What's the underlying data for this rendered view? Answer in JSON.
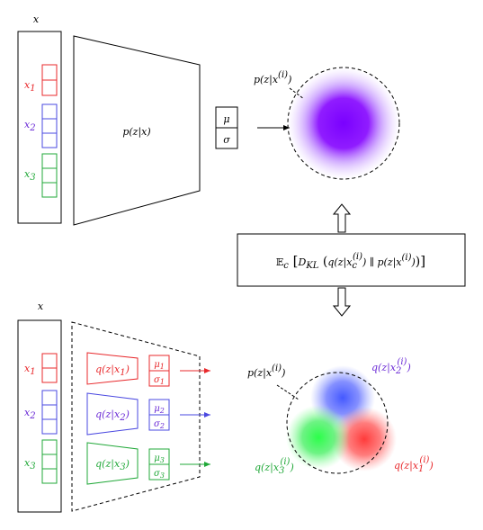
{
  "top": {
    "x_label": "x",
    "segments": [
      {
        "label": "x",
        "sub": "1",
        "color": "#e8282b"
      },
      {
        "label": "x",
        "sub": "2",
        "color": "#6b2bd6"
      },
      {
        "label": "x",
        "sub": "3",
        "color": "#20a838"
      }
    ],
    "encoder_label_1": "p(",
    "encoder_label_2": "z",
    "encoder_label_3": "|",
    "encoder_label_4": "x",
    "encoder_label_5": ")",
    "mu": "μ",
    "sigma": "σ",
    "dist_label": "p(z|x",
    "dist_sup": "(i)",
    "dist_close": ")"
  },
  "middle": {
    "E": "𝔼",
    "E_sub": "c",
    "D": "D",
    "D_sub": "KL",
    "q_part": "q(z|x",
    "q_sub": "c",
    "q_sup": "(i)",
    "sep": "∥",
    "p_part": "p(z|x",
    "p_sup": "(i)"
  },
  "bottom": {
    "x_label": "x",
    "segments": [
      {
        "label": "x",
        "sub": "1",
        "color": "#e8282b",
        "enc": "q(z|x",
        "enc_sub": "1",
        "mu_sub": "1",
        "sigma_sub": "1"
      },
      {
        "label": "x",
        "sub": "2",
        "color": "#6b2bd6",
        "enc": "q(z|x",
        "enc_sub": "2",
        "mu_sub": "2",
        "sigma_sub": "2"
      },
      {
        "label": "x",
        "sub": "3",
        "color": "#20a838",
        "enc": "q(z|x",
        "enc_sub": "3",
        "mu_sub": "3",
        "sigma_sub": "3"
      }
    ],
    "mu": "μ",
    "sigma": "σ",
    "dist_p": "p(z|x",
    "dist_p_sup": "(i)",
    "q2": "q(z|x",
    "q2_sub": "2",
    "q2_sup": "(i)",
    "q1": "q(z|x",
    "q1_sub": "1",
    "q1_sup": "(i)",
    "q3": "q(z|x",
    "q3_sub": "3",
    "q3_sup": "(i)",
    "colors": {
      "q1": "#e8282b",
      "q2": "#6b2bd6",
      "q3": "#20a838"
    }
  }
}
